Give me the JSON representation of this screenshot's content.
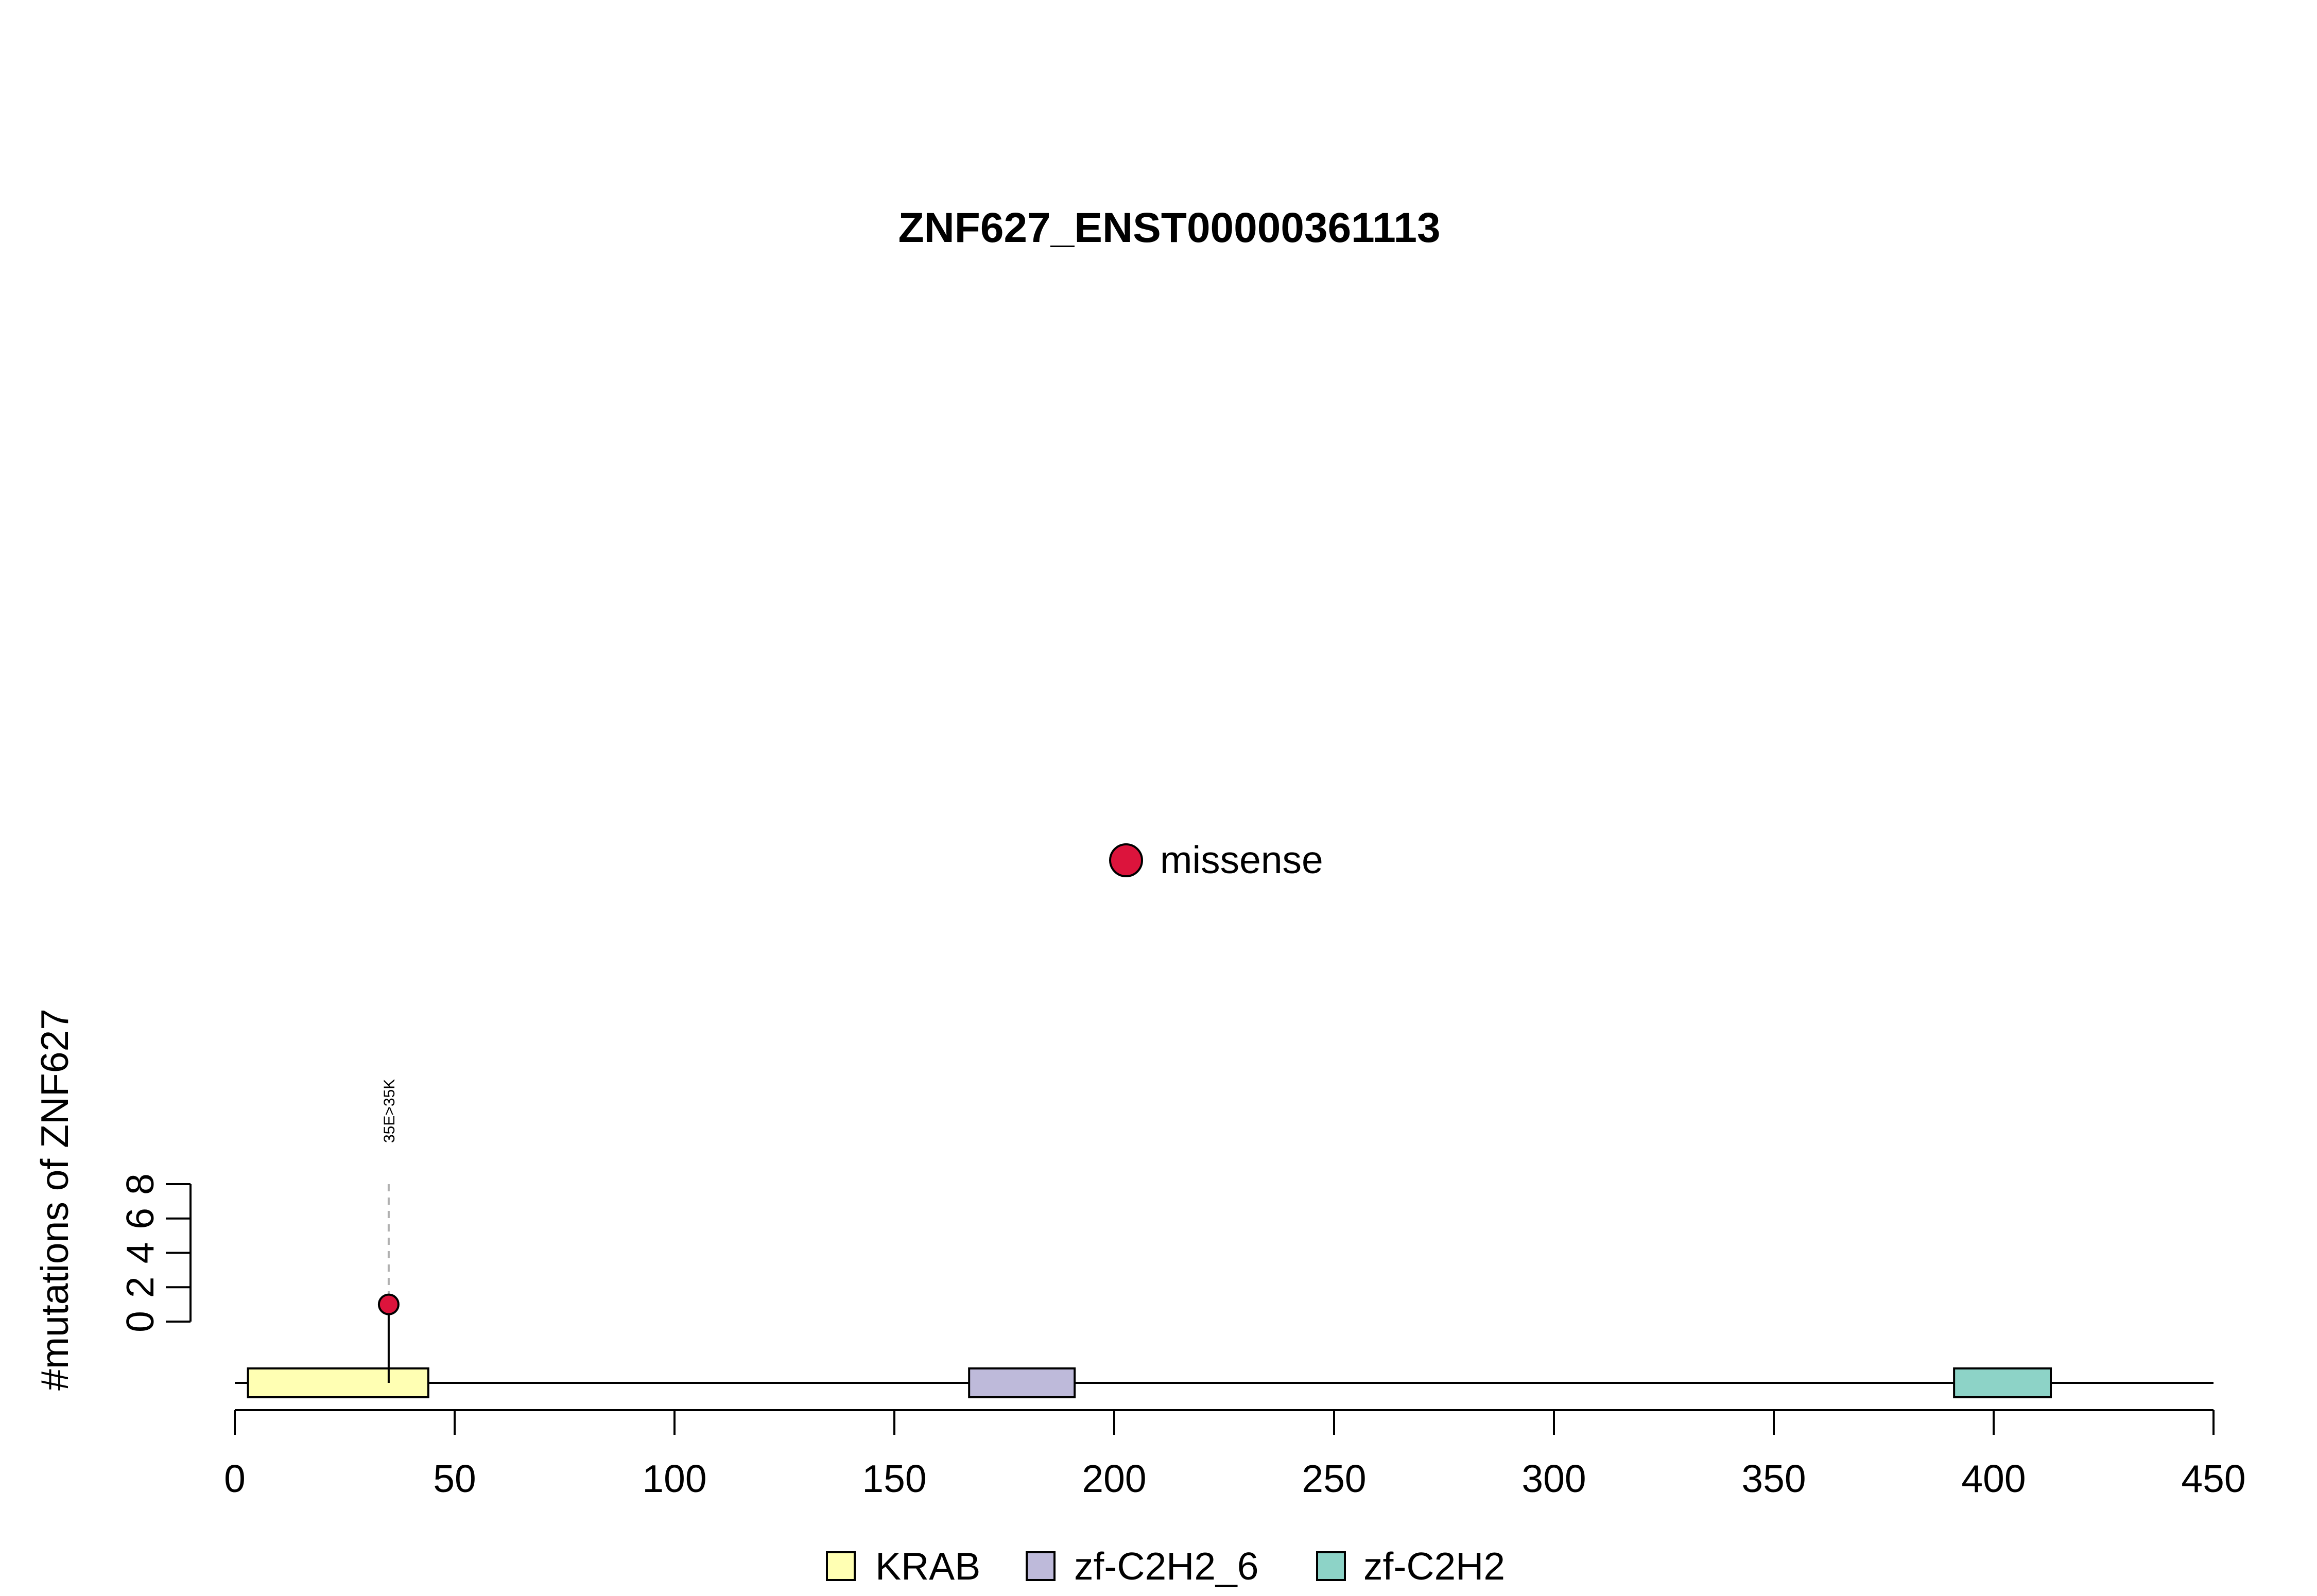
{
  "chart_data": {
    "type": "lollipop",
    "title": "ZNF627_ENST00000361113",
    "ylabel": "#mutations of ZNF627",
    "xlabel": "",
    "xlim": [
      0,
      450
    ],
    "x_ticks": [
      0,
      50,
      100,
      150,
      200,
      250,
      300,
      350,
      400,
      450
    ],
    "y_ticks": [
      0,
      2,
      4,
      6,
      8
    ],
    "ylim": [
      0,
      8
    ],
    "protein_length": 450,
    "mutations": [
      {
        "position": 35,
        "count": 1,
        "label": "35E>35K",
        "type": "missense",
        "color": "#DC143C"
      }
    ],
    "mutation_legend": [
      {
        "name": "missense",
        "color": "#DC143C"
      }
    ],
    "domains": [
      {
        "name": "KRAB",
        "start": 3,
        "end": 44,
        "color": "#FFFFB3"
      },
      {
        "name": "zf-C2H2_6",
        "start": 167,
        "end": 191,
        "color": "#BEBADA"
      },
      {
        "name": "zf-C2H2",
        "start": 391,
        "end": 413,
        "color": "#8DD3C7"
      }
    ],
    "grid": false,
    "legend_placement": "bottom-center"
  }
}
